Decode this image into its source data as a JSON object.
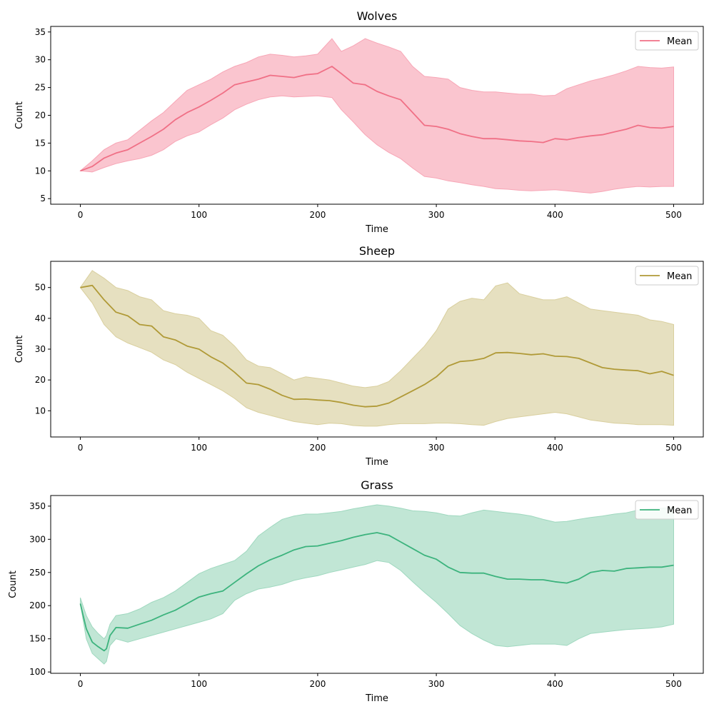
{
  "chart_data": [
    {
      "type": "area",
      "title": "Wolves",
      "xlabel": "Time",
      "ylabel": "Count",
      "xlim": [
        -25,
        525
      ],
      "ylim": [
        4,
        36
      ],
      "xticks": [
        0,
        100,
        200,
        300,
        400,
        500
      ],
      "yticks": [
        5,
        10,
        15,
        20,
        25,
        30,
        35
      ],
      "legend": "top-right",
      "grid": false,
      "color": "#f07086",
      "fill_color": "#f7a6b6",
      "series": [
        {
          "name": "Mean",
          "x": [
            0,
            10,
            20,
            30,
            40,
            50,
            60,
            70,
            80,
            90,
            100,
            110,
            120,
            130,
            140,
            150,
            160,
            170,
            180,
            190,
            200,
            212,
            220,
            230,
            240,
            250,
            260,
            270,
            280,
            290,
            300,
            310,
            320,
            330,
            340,
            350,
            360,
            370,
            380,
            390,
            400,
            410,
            420,
            430,
            440,
            450,
            460,
            470,
            480,
            490,
            500
          ],
          "mean": [
            10,
            10.8,
            12.3,
            13.2,
            13.8,
            15.0,
            16.2,
            17.5,
            19.2,
            20.5,
            21.5,
            22.7,
            24.0,
            25.5,
            26.0,
            26.5,
            27.2,
            27.0,
            26.8,
            27.3,
            27.5,
            28.8,
            27.5,
            25.8,
            25.5,
            24.3,
            23.5,
            22.8,
            20.5,
            18.2,
            18.0,
            17.5,
            16.7,
            16.2,
            15.8,
            15.8,
            15.6,
            15.4,
            15.3,
            15.1,
            15.8,
            15.6,
            16.0,
            16.3,
            16.5,
            17.0,
            17.5,
            18.2,
            17.8,
            17.7,
            18.0
          ],
          "lower": [
            10,
            9.8,
            10.6,
            11.3,
            11.8,
            12.2,
            12.8,
            13.8,
            15.3,
            16.3,
            17.0,
            18.3,
            19.5,
            21.0,
            22.0,
            22.8,
            23.3,
            23.5,
            23.3,
            23.4,
            23.5,
            23.2,
            21.0,
            18.8,
            16.5,
            14.7,
            13.3,
            12.2,
            10.5,
            9.0,
            8.7,
            8.2,
            7.9,
            7.5,
            7.2,
            6.8,
            6.7,
            6.5,
            6.4,
            6.5,
            6.6,
            6.4,
            6.2,
            6.0,
            6.3,
            6.7,
            7.0,
            7.2,
            7.1,
            7.2,
            7.2
          ],
          "upper": [
            10,
            11.8,
            13.8,
            15.0,
            15.6,
            17.3,
            19.0,
            20.5,
            22.5,
            24.5,
            25.5,
            26.5,
            27.8,
            28.8,
            29.5,
            30.5,
            31.0,
            30.8,
            30.5,
            30.7,
            31.0,
            33.8,
            31.5,
            32.5,
            33.8,
            33.0,
            32.3,
            31.5,
            28.8,
            27.0,
            26.8,
            26.5,
            25.0,
            24.5,
            24.2,
            24.2,
            24.0,
            23.8,
            23.8,
            23.5,
            23.6,
            24.8,
            25.5,
            26.2,
            26.7,
            27.3,
            28.0,
            28.8,
            28.6,
            28.5,
            28.7
          ]
        }
      ]
    },
    {
      "type": "area",
      "title": "Sheep",
      "xlabel": "Time",
      "ylabel": "Count",
      "xlim": [
        -25,
        525
      ],
      "ylim": [
        1.5,
        58.5
      ],
      "xticks": [
        0,
        100,
        200,
        300,
        400,
        500
      ],
      "yticks": [
        10,
        20,
        30,
        40,
        50
      ],
      "legend": "top-right",
      "grid": false,
      "color": "#b09a37",
      "fill_color": "#d9cf9e",
      "series": [
        {
          "name": "Mean",
          "x": [
            0,
            10,
            20,
            30,
            40,
            50,
            60,
            70,
            80,
            90,
            100,
            110,
            120,
            130,
            140,
            150,
            160,
            170,
            180,
            190,
            200,
            210,
            220,
            230,
            240,
            250,
            260,
            270,
            280,
            290,
            300,
            310,
            320,
            330,
            340,
            350,
            360,
            370,
            380,
            390,
            400,
            410,
            420,
            430,
            440,
            450,
            460,
            470,
            480,
            490,
            500
          ],
          "mean": [
            50,
            50.7,
            46.0,
            42.0,
            40.8,
            38.0,
            37.5,
            34.0,
            33.0,
            31.0,
            30.0,
            27.5,
            25.5,
            22.5,
            19.0,
            18.5,
            17.0,
            15.0,
            13.7,
            13.8,
            13.5,
            13.3,
            12.7,
            11.8,
            11.3,
            11.5,
            12.5,
            14.5,
            16.5,
            18.5,
            21.0,
            24.5,
            26.0,
            26.3,
            27.0,
            28.8,
            28.9,
            28.6,
            28.2,
            28.5,
            27.7,
            27.6,
            27.0,
            25.5,
            24.0,
            23.5,
            23.2,
            23.0,
            22.0,
            22.8,
            21.5
          ],
          "lower": [
            50,
            45.0,
            38.0,
            34.0,
            32.0,
            30.5,
            29.0,
            26.5,
            25.0,
            22.5,
            20.5,
            18.5,
            16.5,
            14.0,
            11.0,
            9.5,
            8.5,
            7.5,
            6.5,
            6.0,
            5.5,
            6.0,
            5.8,
            5.2,
            5.0,
            5.0,
            5.5,
            5.8,
            5.8,
            5.8,
            6.0,
            6.0,
            5.8,
            5.5,
            5.3,
            6.5,
            7.5,
            8.0,
            8.5,
            9.0,
            9.5,
            9.0,
            8.0,
            7.0,
            6.5,
            6.0,
            5.8,
            5.5,
            5.5,
            5.5,
            5.3
          ],
          "upper": [
            50,
            55.5,
            53.0,
            50.0,
            49.0,
            47.0,
            46.0,
            42.5,
            41.5,
            41.0,
            40.0,
            36.0,
            34.5,
            31.0,
            26.5,
            24.5,
            24.0,
            22.0,
            20.0,
            21.0,
            20.5,
            20.0,
            19.0,
            18.0,
            17.5,
            18.0,
            19.5,
            23.0,
            27.0,
            31.0,
            36.0,
            43.0,
            45.5,
            46.5,
            46.0,
            50.5,
            51.5,
            48.0,
            47.0,
            46.0,
            46.0,
            47.0,
            45.0,
            43.0,
            42.5,
            42.0,
            41.5,
            41.0,
            39.5,
            39.0,
            38.0
          ]
        }
      ]
    },
    {
      "type": "area",
      "title": "Grass",
      "xlabel": "Time",
      "ylabel": "Count",
      "xlim": [
        -25,
        525
      ],
      "ylim": [
        98,
        366
      ],
      "xticks": [
        0,
        100,
        200,
        300,
        400,
        500
      ],
      "yticks": [
        100,
        150,
        200,
        250,
        300,
        350
      ],
      "legend": "top-right",
      "grid": false,
      "color": "#3cb37d",
      "fill_color": "#9fd8bf",
      "series": [
        {
          "name": "Mean",
          "x": [
            0,
            5,
            10,
            15,
            20,
            22,
            25,
            30,
            40,
            50,
            60,
            70,
            80,
            90,
            100,
            110,
            120,
            130,
            140,
            150,
            160,
            170,
            180,
            190,
            200,
            210,
            220,
            230,
            240,
            250,
            260,
            270,
            280,
            290,
            300,
            310,
            320,
            330,
            340,
            350,
            360,
            370,
            380,
            390,
            400,
            410,
            420,
            430,
            440,
            450,
            460,
            470,
            480,
            490,
            500
          ],
          "mean": [
            203,
            165,
            145,
            138,
            132,
            135,
            155,
            167,
            166,
            172,
            178,
            186,
            193,
            203,
            213,
            218,
            222,
            235,
            248,
            260,
            269,
            276,
            284,
            289,
            290,
            294,
            298,
            303,
            307,
            310,
            306,
            296,
            286,
            276,
            270,
            258,
            250,
            249,
            249,
            244,
            240,
            240,
            239,
            239,
            236,
            234,
            240,
            250,
            253,
            252,
            256,
            257,
            258,
            258,
            261
          ],
          "lower": [
            203,
            150,
            128,
            120,
            112,
            116,
            140,
            150,
            145,
            150,
            155,
            160,
            165,
            170,
            175,
            180,
            188,
            208,
            218,
            225,
            228,
            232,
            238,
            242,
            245,
            250,
            254,
            258,
            262,
            268,
            265,
            253,
            236,
            220,
            205,
            188,
            170,
            158,
            148,
            140,
            138,
            140,
            142,
            142,
            142,
            140,
            150,
            158,
            160,
            162,
            164,
            165,
            166,
            168,
            172
          ],
          "upper": [
            212,
            185,
            168,
            158,
            150,
            155,
            172,
            185,
            188,
            195,
            205,
            212,
            222,
            235,
            248,
            256,
            262,
            268,
            282,
            305,
            318,
            330,
            335,
            338,
            338,
            340,
            342,
            346,
            349,
            352,
            350,
            347,
            343,
            342,
            340,
            336,
            335,
            340,
            344,
            342,
            340,
            338,
            335,
            330,
            326,
            327,
            330,
            333,
            335,
            338,
            340,
            344,
            346,
            347,
            348
          ]
        }
      ]
    }
  ]
}
